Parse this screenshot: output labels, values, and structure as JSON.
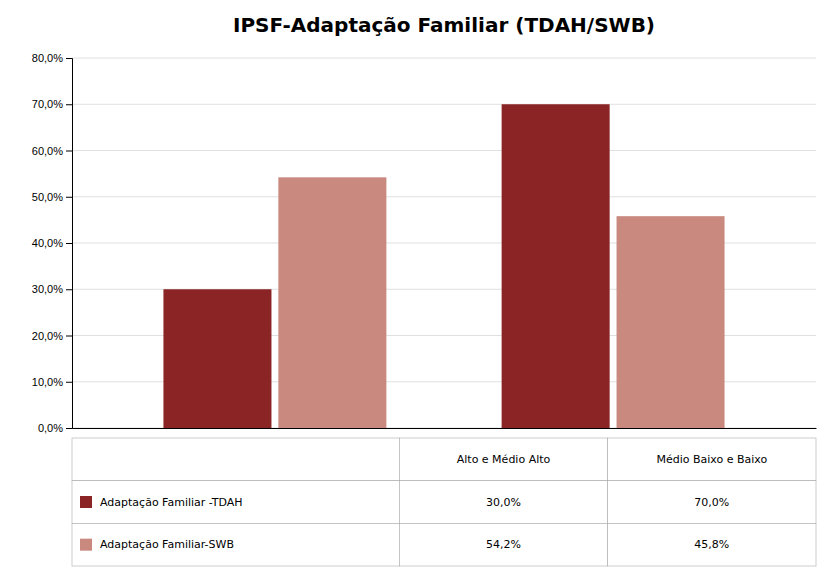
{
  "chart_data": {
    "type": "bar",
    "title": "IPSF-Adaptação Familiar (TDAH/SWB)",
    "categories": [
      "Alto e Médio Alto",
      "Médio Baixo e Baixo"
    ],
    "series": [
      {
        "name": "Adaptação Familiar -TDAH",
        "color": "#8B2525",
        "values": [
          0.3,
          0.7
        ],
        "value_labels": [
          "30,0%",
          "70,0%"
        ]
      },
      {
        "name": "Adaptação Familiar-SWB",
        "color": "#C9897F",
        "values": [
          0.542,
          0.458
        ],
        "value_labels": [
          "54,2%",
          "45,8%"
        ]
      }
    ],
    "ylim": [
      0,
      0.8
    ],
    "yticks": [
      {
        "value": 0.0,
        "label": "0,0%"
      },
      {
        "value": 0.1,
        "label": "10,0%"
      },
      {
        "value": 0.2,
        "label": "20,0%"
      },
      {
        "value": 0.3,
        "label": "30,0%"
      },
      {
        "value": 0.4,
        "label": "40,0%"
      },
      {
        "value": 0.5,
        "label": "50,0%"
      },
      {
        "value": 0.6,
        "label": "60,0%"
      },
      {
        "value": 0.7,
        "label": "70,0%"
      },
      {
        "value": 0.8,
        "label": "80,0%"
      }
    ],
    "grid": true
  }
}
